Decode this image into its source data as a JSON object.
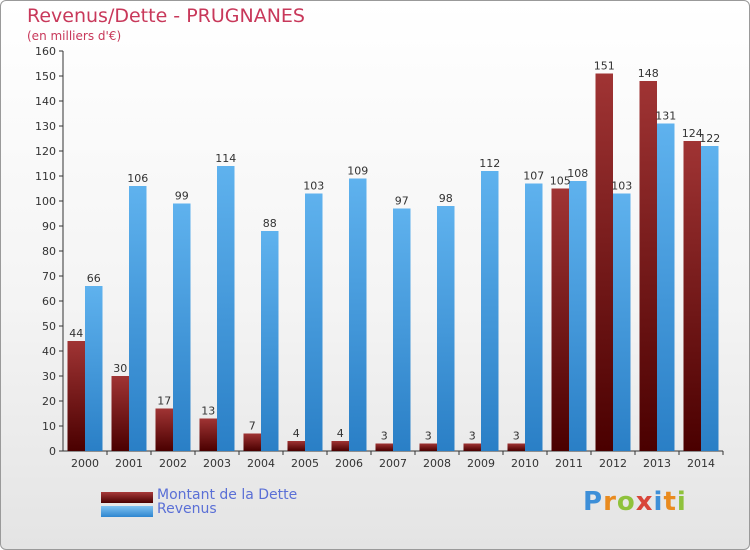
{
  "title": "Revenus/Dette - PRUGNANES",
  "subtitle": "(en milliers d'€)",
  "logo": "Proxiti",
  "chart_data": {
    "type": "bar",
    "title": "Revenus/Dette - PRUGNANES",
    "ylabel": "(en milliers d'€)",
    "xlabel": "",
    "ylim": [
      0,
      160
    ],
    "ytick_step": 10,
    "grid": false,
    "legend_position": "bottom-left",
    "categories": [
      "2000",
      "2001",
      "2002",
      "2003",
      "2004",
      "2005",
      "2006",
      "2007",
      "2008",
      "2009",
      "2010",
      "2011",
      "2012",
      "2013",
      "2014"
    ],
    "series": [
      {
        "name": "Montant de la Dette",
        "color": "#7a1414",
        "values": [
          44,
          30,
          17,
          13,
          7,
          4,
          4,
          3,
          3,
          3,
          3,
          105,
          151,
          148,
          124
        ]
      },
      {
        "name": "Revenus",
        "color": "#4ea6e6",
        "values": [
          66,
          106,
          99,
          114,
          88,
          103,
          109,
          97,
          98,
          112,
          107,
          108,
          103,
          131,
          122
        ]
      }
    ]
  }
}
